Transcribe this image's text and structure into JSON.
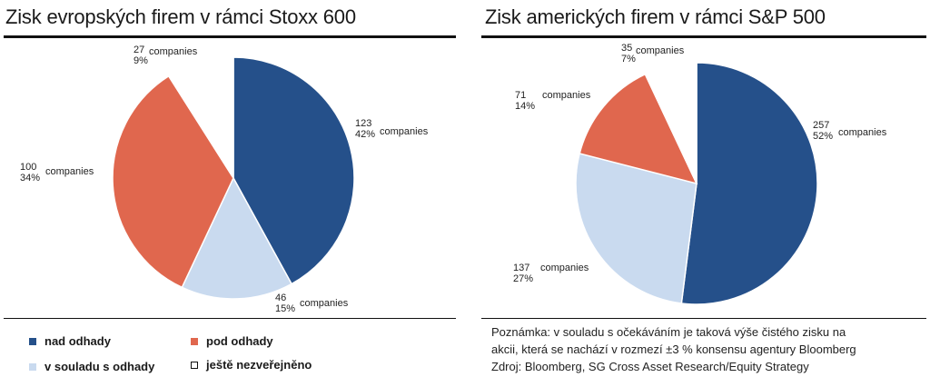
{
  "colors": {
    "nad_odhady": "#25508a",
    "pod_odhady": "#e0674e",
    "v_souladu": "#c9daef",
    "nezverejneno": "#ffffff"
  },
  "chart_data": [
    {
      "type": "pie",
      "title": "Zisk evropských firem v rámci Stoxx 600",
      "slices": [
        {
          "category": "nad odhady",
          "count": "123",
          "unit": "companies",
          "pct": 42,
          "pct_label": "42%"
        },
        {
          "category": "v souladu s odhady",
          "count": "46",
          "unit": "companies",
          "pct": 15,
          "pct_label": "15%"
        },
        {
          "category": "pod odhady",
          "count": "100",
          "unit": "companies",
          "pct": 34,
          "pct_label": "34%"
        },
        {
          "category": "ještě nezveřejněno",
          "count": "27",
          "unit": "companies",
          "pct": 9,
          "pct_label": "9%"
        }
      ]
    },
    {
      "type": "pie",
      "title": "Zisk amerických firem v rámci S&P 500",
      "slices": [
        {
          "category": "nad odhady",
          "count": "257",
          "unit": "companies",
          "pct": 52,
          "pct_label": "52%"
        },
        {
          "category": "v souladu s odhady",
          "count": "137",
          "unit": "companies",
          "pct": 27,
          "pct_label": "27%"
        },
        {
          "category": "pod odhady",
          "count": "71",
          "unit": "companies",
          "pct": 14,
          "pct_label": "14%"
        },
        {
          "category": "ještě nezveřejněno",
          "count": "35",
          "unit": "companies",
          "pct": 7,
          "pct_label": "7%"
        }
      ]
    }
  ],
  "legend": [
    {
      "label": "nad odhady",
      "color": "#25508a"
    },
    {
      "label": "pod odhady",
      "color": "#e0674e"
    },
    {
      "label": "v souladu s odhady",
      "color": "#c9daef"
    },
    {
      "label": "ještě nezveřejněno",
      "color": "#ffffff"
    }
  ],
  "note": {
    "line1": "Poznámka: v souladu s očekáváním je taková výše čistého zisku na",
    "line2": "akcii, která se nachází v rozmezí ±3 % konsensu agentury Bloomberg",
    "line3": "Zdroj: Bloomberg, SG Cross Asset Research/Equity Strategy"
  }
}
